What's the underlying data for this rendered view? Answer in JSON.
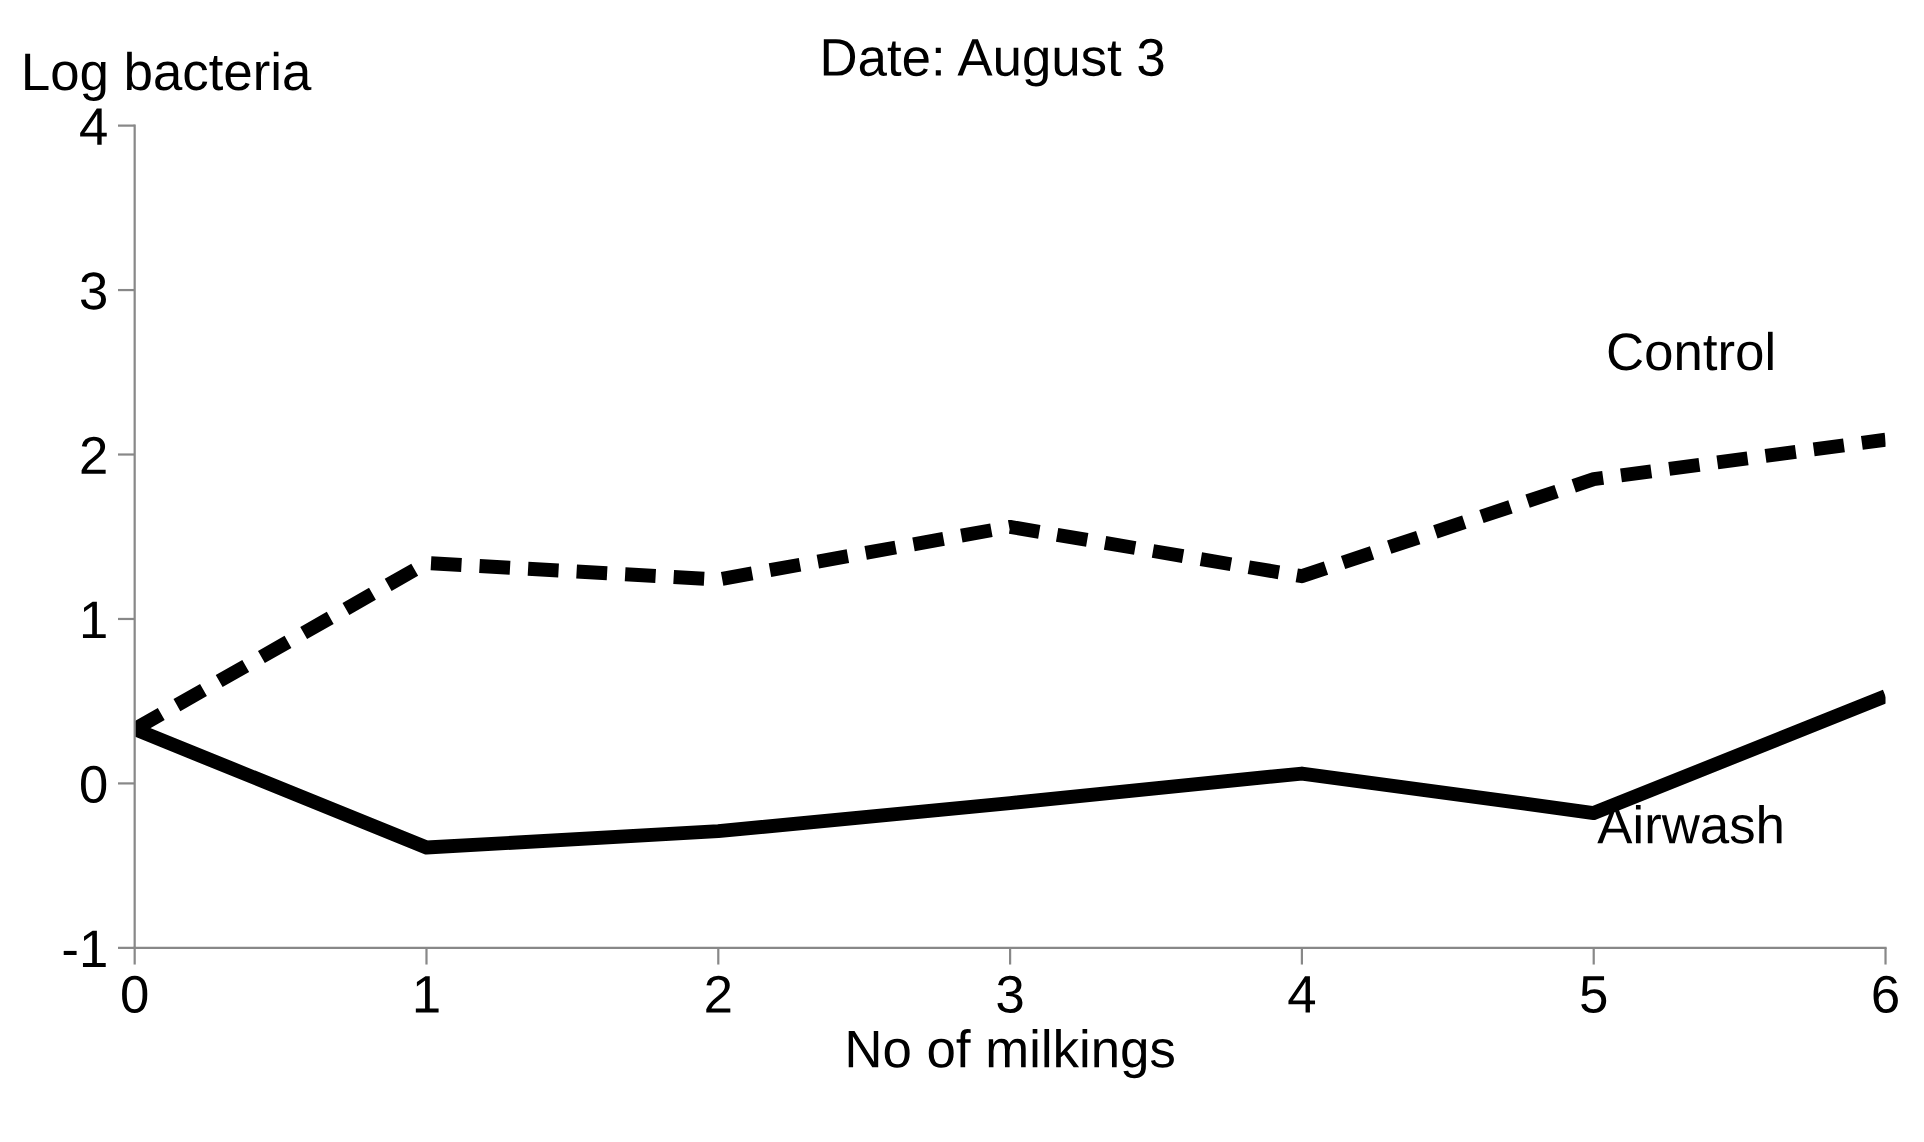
{
  "chart_data": {
    "type": "line",
    "title": "Date: August 3",
    "xlabel": "No of milkings",
    "ylabel": "Log bacteria",
    "x": [
      0,
      1,
      2,
      3,
      4,
      5,
      6
    ],
    "series": [
      {
        "name": "Control",
        "color": "#000000",
        "line_style": "dashed",
        "values": [
          0.33,
          1.34,
          1.24,
          1.56,
          1.26,
          1.85,
          2.09
        ]
      },
      {
        "name": "Airwash",
        "color": "#000000",
        "line_style": "solid",
        "values": [
          0.33,
          -0.39,
          -0.29,
          -0.12,
          0.06,
          -0.18,
          0.53
        ]
      }
    ],
    "xlim": [
      0,
      6
    ],
    "xticks": [
      0,
      1,
      2,
      3,
      4,
      5,
      6
    ],
    "ylim": [
      -1,
      4
    ],
    "yticks": [
      -1,
      0,
      1,
      2,
      3,
      4
    ],
    "grid": false,
    "marker": "none",
    "legend": false
  }
}
